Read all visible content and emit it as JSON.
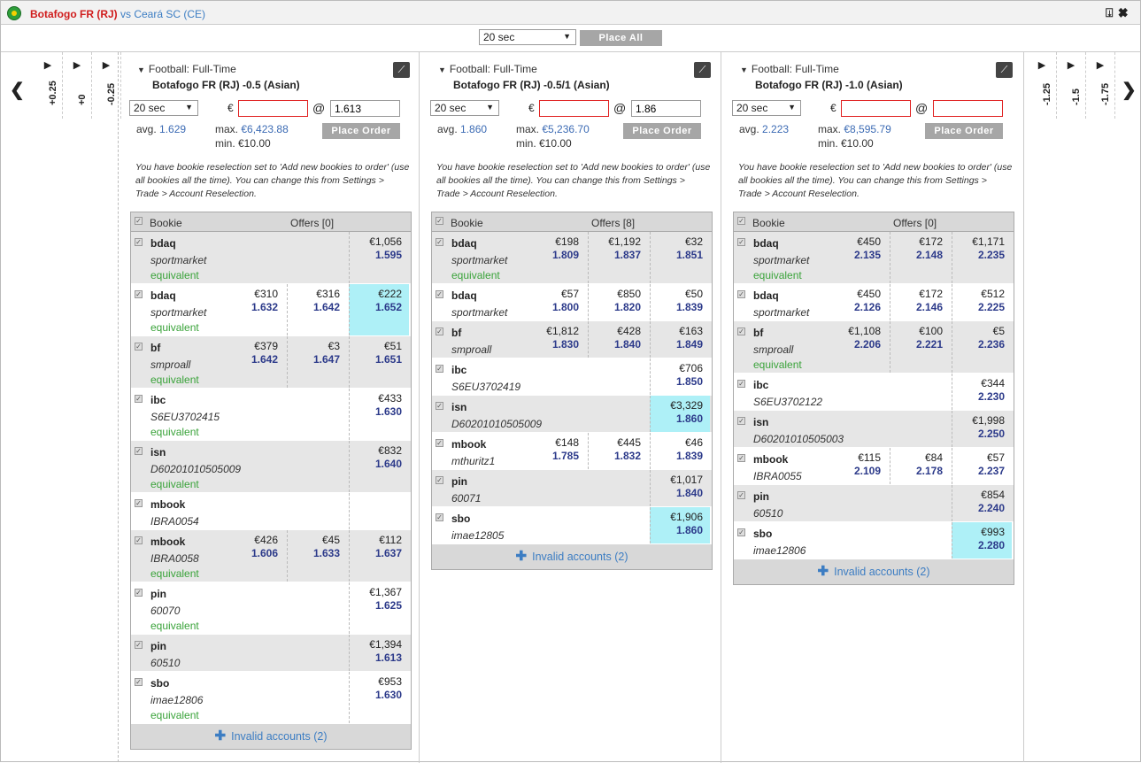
{
  "window": {
    "home_team": "Botafogo FR (RJ)",
    "vs": "vs",
    "away_team": "Ceará SC (CE)",
    "icons": [
      "pin-icon",
      "close-icon"
    ],
    "pin_glyph": "⍗",
    "close_glyph": "✖"
  },
  "topbar": {
    "timer": "20 sec",
    "place_all": "Place All"
  },
  "left_nav": {
    "columns": [
      {
        "label": "+0.25"
      },
      {
        "label": "+0"
      },
      {
        "label": "-0.25"
      }
    ],
    "arrow": "❮"
  },
  "right_nav": {
    "columns": [
      {
        "label": "-1.25"
      },
      {
        "label": "-1.5"
      },
      {
        "label": "-1.75"
      }
    ],
    "arrow": "❯"
  },
  "panels": [
    {
      "header": "Football: Full-Time",
      "market": "Botafogo FR (RJ) -0.5 (Asian)",
      "timer": "20 sec",
      "currency": "€",
      "stake": "",
      "at": "@",
      "price": "1.613",
      "price_red": false,
      "avg_label": "avg.",
      "avg": "1.629",
      "max_label": "max.",
      "max": "€6,423.88",
      "min": "min. €10.00",
      "place_order": "Place Order",
      "note": "You have bookie reselection set to 'Add new bookies to order' (use all bookies all the time). You can change this from Settings > Trade > Account Reselection.",
      "table": {
        "bookie_header": "Bookie",
        "offers_header": "Offers [0]",
        "rows": [
          {
            "bookie": "bdaq",
            "account": "sportmarket",
            "equiv": "equivalent",
            "grey": true,
            "offers": [
              null,
              null,
              {
                "stake": "€1,056",
                "odds": "1.595"
              }
            ]
          },
          {
            "bookie": "bdaq",
            "account": "sportmarket",
            "equiv": "equivalent",
            "grey": false,
            "offers": [
              {
                "stake": "€310",
                "odds": "1.632"
              },
              {
                "stake": "€316",
                "odds": "1.642"
              },
              {
                "stake": "€222",
                "odds": "1.652",
                "hl": true
              }
            ]
          },
          {
            "bookie": "bf",
            "account": "smproall",
            "equiv": "equivalent",
            "grey": true,
            "offers": [
              {
                "stake": "€379",
                "odds": "1.642"
              },
              {
                "stake": "€3",
                "odds": "1.647"
              },
              {
                "stake": "€51",
                "odds": "1.651"
              }
            ]
          },
          {
            "bookie": "ibc",
            "account": "S6EU3702415",
            "equiv": "equivalent",
            "grey": false,
            "offers": [
              null,
              null,
              {
                "stake": "€433",
                "odds": "1.630"
              }
            ]
          },
          {
            "bookie": "isn",
            "account": "D60201010505009",
            "equiv": "equivalent",
            "grey": true,
            "offers": [
              null,
              null,
              {
                "stake": "€832",
                "odds": "1.640"
              }
            ]
          },
          {
            "bookie": "mbook",
            "account": "IBRA0054",
            "equiv": "",
            "grey": false,
            "offers": [
              null,
              null,
              null
            ]
          },
          {
            "bookie": "mbook",
            "account": "IBRA0058",
            "equiv": "equivalent",
            "grey": true,
            "offers": [
              {
                "stake": "€426",
                "odds": "1.606"
              },
              {
                "stake": "€45",
                "odds": "1.633"
              },
              {
                "stake": "€112",
                "odds": "1.637"
              }
            ]
          },
          {
            "bookie": "pin",
            "account": "60070",
            "equiv": "equivalent",
            "grey": false,
            "offers": [
              null,
              null,
              {
                "stake": "€1,367",
                "odds": "1.625"
              }
            ]
          },
          {
            "bookie": "pin",
            "account": "60510",
            "equiv": "",
            "grey": true,
            "offers": [
              null,
              null,
              {
                "stake": "€1,394",
                "odds": "1.613"
              }
            ]
          },
          {
            "bookie": "sbo",
            "account": "imae12806",
            "equiv": "equivalent",
            "grey": false,
            "offers": [
              null,
              null,
              {
                "stake": "€953",
                "odds": "1.630"
              }
            ]
          }
        ],
        "footer": "Invalid accounts (2)"
      }
    },
    {
      "header": "Football: Full-Time",
      "market": "Botafogo FR (RJ) -0.5/1 (Asian)",
      "timer": "20 sec",
      "currency": "€",
      "stake": "",
      "at": "@",
      "price": "1.86",
      "price_red": false,
      "avg_label": "avg.",
      "avg": "1.860",
      "max_label": "max.",
      "max": "€5,236.70",
      "min": "min. €10.00",
      "place_order": "Place Order",
      "note": "You have bookie reselection set to 'Add new bookies to order' (use all bookies all the time). You can change this from Settings > Trade > Account Reselection.",
      "table": {
        "bookie_header": "Bookie",
        "offers_header": "Offers [8]",
        "rows": [
          {
            "bookie": "bdaq",
            "account": "sportmarket",
            "equiv": "equivalent",
            "grey": true,
            "offers": [
              {
                "stake": "€198",
                "odds": "1.809"
              },
              {
                "stake": "€1,192",
                "odds": "1.837"
              },
              {
                "stake": "€32",
                "odds": "1.851"
              }
            ]
          },
          {
            "bookie": "bdaq",
            "account": "sportmarket",
            "equiv": "",
            "grey": false,
            "offers": [
              {
                "stake": "€57",
                "odds": "1.800"
              },
              {
                "stake": "€850",
                "odds": "1.820"
              },
              {
                "stake": "€50",
                "odds": "1.839"
              }
            ]
          },
          {
            "bookie": "bf",
            "account": "smproall",
            "equiv": "",
            "grey": true,
            "offers": [
              {
                "stake": "€1,812",
                "odds": "1.830"
              },
              {
                "stake": "€428",
                "odds": "1.840"
              },
              {
                "stake": "€163",
                "odds": "1.849"
              }
            ]
          },
          {
            "bookie": "ibc",
            "account": "S6EU3702419",
            "equiv": "",
            "grey": false,
            "offers": [
              null,
              null,
              {
                "stake": "€706",
                "odds": "1.850"
              }
            ]
          },
          {
            "bookie": "isn",
            "account": "D60201010505009",
            "equiv": "",
            "grey": true,
            "offers": [
              null,
              null,
              {
                "stake": "€3,329",
                "odds": "1.860",
                "hl": true
              }
            ]
          },
          {
            "bookie": "mbook",
            "account": "mthuritz1",
            "equiv": "",
            "grey": false,
            "offers": [
              {
                "stake": "€148",
                "odds": "1.785"
              },
              {
                "stake": "€445",
                "odds": "1.832"
              },
              {
                "stake": "€46",
                "odds": "1.839"
              }
            ]
          },
          {
            "bookie": "pin",
            "account": "60071",
            "equiv": "",
            "grey": true,
            "offers": [
              null,
              null,
              {
                "stake": "€1,017",
                "odds": "1.840"
              }
            ]
          },
          {
            "bookie": "sbo",
            "account": "imae12805",
            "equiv": "",
            "grey": false,
            "offers": [
              null,
              null,
              {
                "stake": "€1,906",
                "odds": "1.860",
                "hl": true
              }
            ]
          }
        ],
        "footer": "Invalid accounts (2)"
      }
    },
    {
      "header": "Football: Full-Time",
      "market": "Botafogo FR (RJ) -1.0 (Asian)",
      "timer": "20 sec",
      "currency": "€",
      "stake": "",
      "at": "@",
      "price": "",
      "price_red": true,
      "avg_label": "avg.",
      "avg": "2.223",
      "max_label": "max.",
      "max": "€8,595.79",
      "min": "min. €10.00",
      "place_order": "Place Order",
      "note": "You have bookie reselection set to 'Add new bookies to order' (use all bookies all the time). You can change this from Settings > Trade > Account Reselection.",
      "table": {
        "bookie_header": "Bookie",
        "offers_header": "Offers [0]",
        "rows": [
          {
            "bookie": "bdaq",
            "account": "sportmarket",
            "equiv": "equivalent",
            "grey": true,
            "offers": [
              {
                "stake": "€450",
                "odds": "2.135"
              },
              {
                "stake": "€172",
                "odds": "2.148"
              },
              {
                "stake": "€1,171",
                "odds": "2.235"
              }
            ]
          },
          {
            "bookie": "bdaq",
            "account": "sportmarket",
            "equiv": "",
            "grey": false,
            "offers": [
              {
                "stake": "€450",
                "odds": "2.126"
              },
              {
                "stake": "€172",
                "odds": "2.146"
              },
              {
                "stake": "€512",
                "odds": "2.225"
              }
            ]
          },
          {
            "bookie": "bf",
            "account": "smproall",
            "equiv": "equivalent",
            "grey": true,
            "offers": [
              {
                "stake": "€1,108",
                "odds": "2.206"
              },
              {
                "stake": "€100",
                "odds": "2.221"
              },
              {
                "stake": "€5",
                "odds": "2.236"
              }
            ]
          },
          {
            "bookie": "ibc",
            "account": "S6EU3702122",
            "equiv": "",
            "grey": false,
            "offers": [
              null,
              null,
              {
                "stake": "€344",
                "odds": "2.230"
              }
            ]
          },
          {
            "bookie": "isn",
            "account": "D60201010505003",
            "equiv": "",
            "grey": true,
            "offers": [
              null,
              null,
              {
                "stake": "€1,998",
                "odds": "2.250"
              }
            ]
          },
          {
            "bookie": "mbook",
            "account": "IBRA0055",
            "equiv": "",
            "grey": false,
            "offers": [
              {
                "stake": "€115",
                "odds": "2.109"
              },
              {
                "stake": "€84",
                "odds": "2.178"
              },
              {
                "stake": "€57",
                "odds": "2.237"
              }
            ]
          },
          {
            "bookie": "pin",
            "account": "60510",
            "equiv": "",
            "grey": true,
            "offers": [
              null,
              null,
              {
                "stake": "€854",
                "odds": "2.240"
              }
            ]
          },
          {
            "bookie": "sbo",
            "account": "imae12806",
            "equiv": "",
            "grey": false,
            "offers": [
              null,
              null,
              {
                "stake": "€993",
                "odds": "2.280",
                "hl": true
              }
            ]
          }
        ],
        "footer": "Invalid accounts (2)"
      }
    }
  ]
}
